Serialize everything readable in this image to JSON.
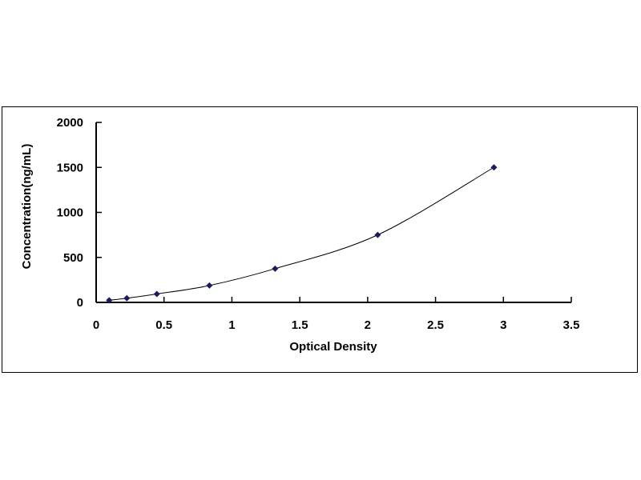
{
  "chart_data": {
    "type": "scatter",
    "title": "",
    "xlabel": "Optical Density",
    "ylabel": "Concentration(ng/mL)",
    "xlim": [
      0,
      3.5
    ],
    "ylim": [
      0,
      2000
    ],
    "xticks": [
      "0",
      "0.5",
      "1",
      "1.5",
      "2",
      "2.5",
      "3",
      "3.5"
    ],
    "yticks": [
      "0",
      "500",
      "1000",
      "1500",
      "2000"
    ],
    "grid": false,
    "legend": "none",
    "marker": "diamond",
    "trendline": "smooth curve",
    "color": "#1a1a5e",
    "series": [
      {
        "x": [
          0.096,
          0.226,
          0.447,
          0.834,
          1.318,
          2.074,
          2.93
        ],
        "y": [
          23.44,
          46.88,
          93.75,
          187.5,
          375,
          750,
          1500
        ]
      }
    ]
  }
}
